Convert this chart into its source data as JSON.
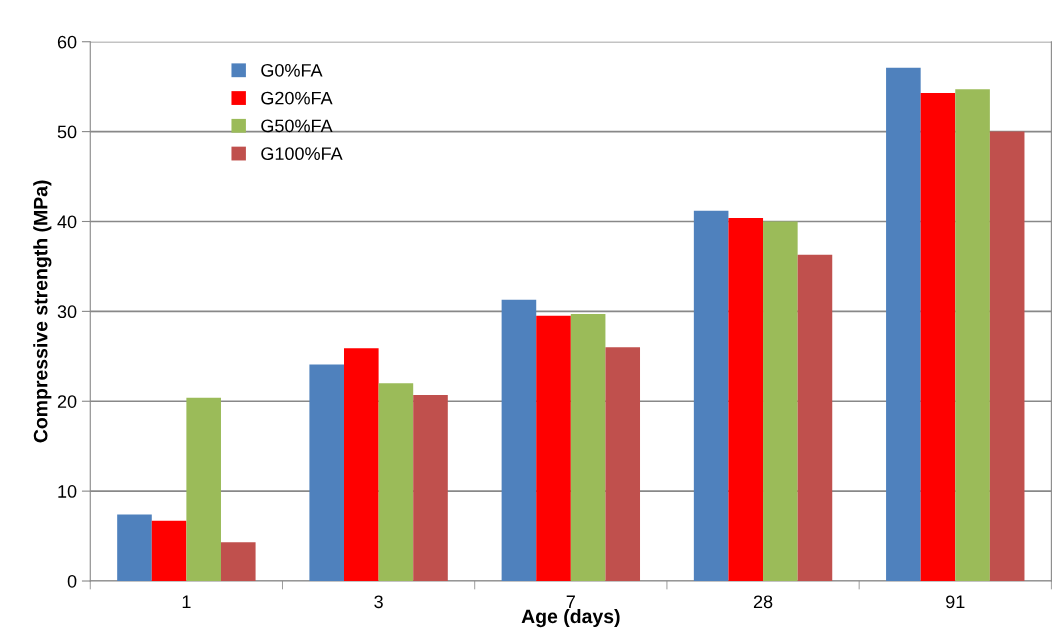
{
  "chart_data": {
    "type": "bar",
    "xlabel": "Age (days)",
    "ylabel": "Compressive strength (MPa)",
    "categories": [
      "1",
      "3",
      "7",
      "28",
      "91"
    ],
    "series": [
      {
        "name": "G0%FA",
        "color": "#4f81bd",
        "values": [
          7.4,
          24.1,
          31.3,
          41.2,
          57.1
        ]
      },
      {
        "name": "G20%FA",
        "color": "#ff0000",
        "values": [
          6.7,
          25.9,
          29.5,
          40.4,
          54.3
        ]
      },
      {
        "name": "G50%FA",
        "color": "#9bbb59",
        "values": [
          20.4,
          22.0,
          29.7,
          40.0,
          54.7
        ]
      },
      {
        "name": "G100%FA",
        "color": "#c0504d",
        "values": [
          4.3,
          20.7,
          26.0,
          36.3,
          50.0
        ]
      }
    ],
    "ylim": [
      0,
      60
    ],
    "yticks": [
      0,
      10,
      20,
      30,
      40,
      50,
      60
    ],
    "grid": "y",
    "legend": "top left"
  }
}
